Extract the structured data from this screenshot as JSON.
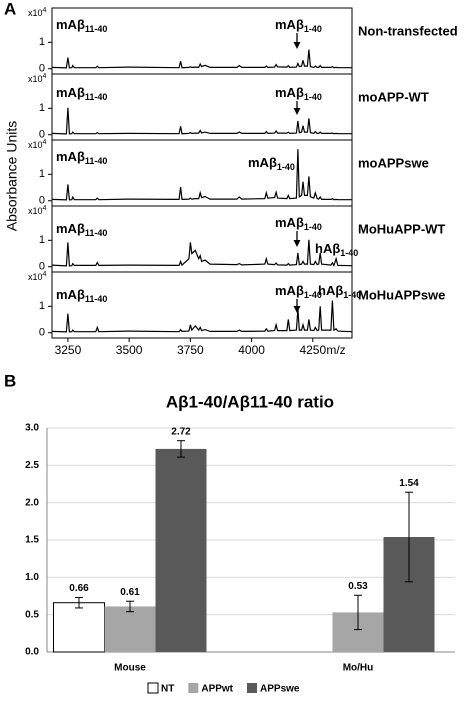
{
  "chart_data": [
    {
      "type": "line",
      "panel_label": "A",
      "ylabel": "Absorbance Units",
      "xlabel": "m/z",
      "y_multiplier": {
        "base": "x10",
        "exp": "4"
      },
      "xlim": [
        3185,
        4410
      ],
      "xticks": [
        3250,
        3500,
        3750,
        4000,
        4250
      ],
      "ylim": [
        -0.2,
        2.3
      ],
      "yticks": [
        0,
        1
      ],
      "x": [
        3185,
        3244,
        3250,
        3256,
        3266,
        3270,
        3276,
        3364,
        3370,
        3376,
        3500,
        3704,
        3710,
        3716,
        3744,
        3750,
        3756,
        3770,
        3784,
        3790,
        3796,
        3810,
        3830,
        3940,
        3950,
        3960,
        4054,
        4060,
        4066,
        4094,
        4100,
        4106,
        4144,
        4150,
        4156,
        4183,
        4189,
        4195,
        4204,
        4210,
        4216,
        4228,
        4234,
        4240,
        4254,
        4260,
        4268,
        4274,
        4280,
        4286,
        4324,
        4330,
        4336,
        4345,
        4352,
        4410
      ],
      "series": [
        {
          "name": "Non-transfected",
          "color": "#000000",
          "annotations": [
            {
              "text": "mAβ",
              "sub": "11-40"
            },
            {
              "text": "mAβ",
              "sub": "1-40"
            }
          ],
          "values": [
            0.05,
            0.03,
            0.42,
            0.03,
            0.04,
            0.12,
            0.04,
            0.04,
            0.09,
            0.04,
            0.06,
            0.04,
            0.28,
            0.04,
            0.05,
            0.07,
            0.05,
            0.06,
            0.05,
            0.18,
            0.08,
            0.13,
            0.05,
            0.05,
            0.12,
            0.05,
            0.05,
            0.1,
            0.05,
            0.06,
            0.16,
            0.07,
            0.06,
            0.12,
            0.05,
            0.06,
            0.2,
            0.08,
            0.1,
            0.32,
            0.1,
            0.1,
            0.72,
            0.08,
            0.05,
            0.1,
            0.05,
            0.05,
            0.12,
            0.05,
            0.05,
            0.08,
            0.04,
            0.05,
            0.04,
            0.04
          ]
        },
        {
          "name": "moAPP-WT",
          "color": "#000000",
          "annotations": [
            {
              "text": "mAβ",
              "sub": "11-40"
            },
            {
              "text": "mAβ",
              "sub": "1-40"
            }
          ],
          "values": [
            0.05,
            0.03,
            1.02,
            0.03,
            0.04,
            0.1,
            0.04,
            0.04,
            0.08,
            0.04,
            0.05,
            0.04,
            0.32,
            0.04,
            0.05,
            0.08,
            0.05,
            0.06,
            0.06,
            0.16,
            0.07,
            0.1,
            0.05,
            0.05,
            0.1,
            0.05,
            0.05,
            0.12,
            0.05,
            0.06,
            0.14,
            0.06,
            0.06,
            0.1,
            0.05,
            0.06,
            0.52,
            0.08,
            0.1,
            0.34,
            0.1,
            0.1,
            0.62,
            0.08,
            0.05,
            0.12,
            0.05,
            0.05,
            0.1,
            0.05,
            0.05,
            0.06,
            0.04,
            0.05,
            0.04,
            0.04
          ]
        },
        {
          "name": "moAPPswe",
          "color": "#000000",
          "annotations": [
            {
              "text": "mAβ",
              "sub": "11-40"
            },
            {
              "text": "mAβ",
              "sub": "1-40"
            }
          ],
          "values": [
            0.05,
            0.03,
            0.62,
            0.03,
            0.04,
            0.14,
            0.04,
            0.04,
            0.1,
            0.04,
            0.06,
            0.05,
            0.52,
            0.05,
            0.06,
            0.1,
            0.06,
            0.08,
            0.08,
            0.3,
            0.12,
            0.16,
            0.06,
            0.06,
            0.14,
            0.06,
            0.08,
            0.3,
            0.1,
            0.12,
            0.32,
            0.1,
            0.08,
            0.2,
            0.08,
            0.1,
            1.95,
            0.15,
            0.2,
            0.72,
            0.2,
            0.2,
            0.92,
            0.15,
            0.1,
            0.3,
            0.08,
            0.06,
            0.14,
            0.05,
            0.05,
            0.08,
            0.04,
            0.05,
            0.04,
            0.04
          ]
        },
        {
          "name": "MoHuAPP-WT",
          "color": "#000000",
          "annotations": [
            {
              "text": "mAβ",
              "sub": "11-40"
            },
            {
              "text": "mAβ",
              "sub": "1-40"
            },
            {
              "text": "hAβ",
              "sub": "1-40"
            }
          ],
          "values": [
            0.06,
            0.03,
            0.92,
            0.03,
            0.04,
            0.12,
            0.05,
            0.05,
            0.16,
            0.05,
            0.06,
            0.05,
            0.2,
            0.06,
            0.3,
            0.92,
            0.5,
            0.62,
            0.3,
            0.42,
            0.2,
            0.25,
            0.1,
            0.08,
            0.12,
            0.07,
            0.1,
            0.3,
            0.1,
            0.08,
            0.14,
            0.07,
            0.06,
            0.12,
            0.06,
            0.08,
            0.52,
            0.08,
            0.1,
            0.2,
            0.1,
            0.1,
            1.02,
            0.1,
            0.08,
            0.2,
            0.08,
            0.1,
            0.52,
            0.1,
            0.06,
            0.15,
            0.05,
            0.3,
            0.05,
            0.04
          ]
        },
        {
          "name": "MoHuAPPswe",
          "color": "#000000",
          "annotations": [
            {
              "text": "mAβ",
              "sub": "11-40"
            },
            {
              "text": "mAβ",
              "sub": "1-40"
            },
            {
              "text": "hAβ",
              "sub": "1-40"
            }
          ],
          "values": [
            0.05,
            0.03,
            0.72,
            0.03,
            0.04,
            0.1,
            0.04,
            0.04,
            0.2,
            0.04,
            0.06,
            0.04,
            0.12,
            0.05,
            0.06,
            0.3,
            0.1,
            0.26,
            0.1,
            0.2,
            0.08,
            0.12,
            0.05,
            0.05,
            0.1,
            0.05,
            0.06,
            0.15,
            0.06,
            0.08,
            0.3,
            0.08,
            0.08,
            0.5,
            0.08,
            0.1,
            0.9,
            0.1,
            0.1,
            0.3,
            0.1,
            0.1,
            0.5,
            0.1,
            0.08,
            0.2,
            0.08,
            0.1,
            1.0,
            0.1,
            0.1,
            1.22,
            0.1,
            0.15,
            0.06,
            0.04
          ]
        }
      ]
    },
    {
      "type": "bar",
      "panel_label": "B",
      "title": "Aβ1-40/Aβ11-40 ratio",
      "categories": [
        "Mouse",
        "Mo/Hu"
      ],
      "ylim": [
        0,
        3
      ],
      "yticks": [
        {
          "value": 0,
          "label": "0.0"
        },
        {
          "value": 0.5,
          "label": "0.5"
        },
        {
          "value": 1,
          "label": "1.0"
        },
        {
          "value": 1.5,
          "label": "1.5"
        },
        {
          "value": 2,
          "label": "2.0"
        },
        {
          "value": 2.5,
          "label": "2.5"
        },
        {
          "value": 3,
          "label": "3.0"
        }
      ],
      "grid": true,
      "legend": "bottom",
      "series": [
        {
          "name": "NT",
          "color": "#ffffff",
          "values": [
            0.66,
            null
          ],
          "errors": [
            0.07,
            null
          ]
        },
        {
          "name": "APPwt",
          "color": "#a6a6a6",
          "values": [
            0.61,
            0.53
          ],
          "errors": [
            0.07,
            0.23
          ]
        },
        {
          "name": "APPswe",
          "color": "#595959",
          "values": [
            2.72,
            1.54
          ],
          "errors": [
            0.11,
            0.6
          ]
        }
      ]
    }
  ]
}
